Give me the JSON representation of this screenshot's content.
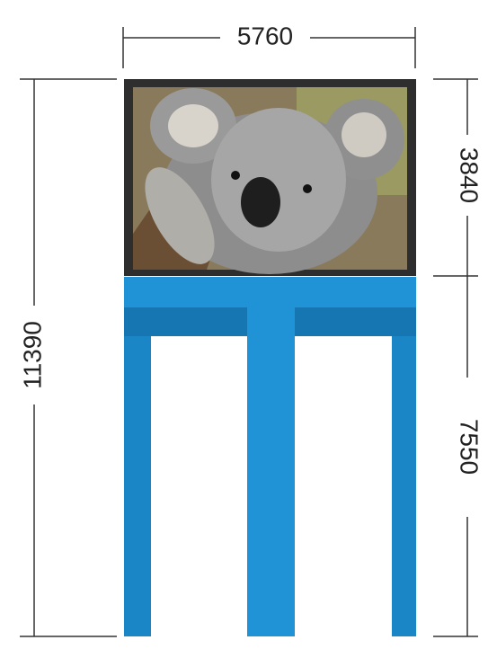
{
  "dimensions": {
    "width": "5760",
    "screen_height": "3840",
    "total_height": "11390",
    "structure_height": "7550"
  }
}
